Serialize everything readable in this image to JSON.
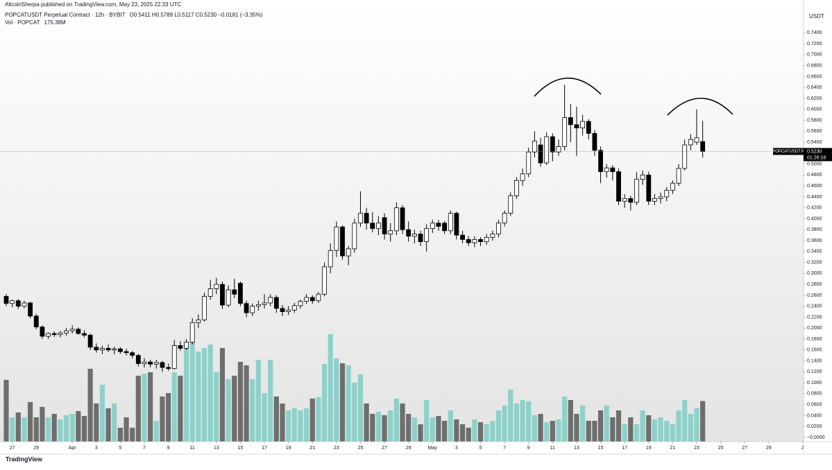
{
  "header": {
    "published": "AltcoinSherpa published on TradingView.com, May 23, 2025 22:33 UTC",
    "footer": "TradingView"
  },
  "chart_data": {
    "type": "candlestick",
    "title": "POPCATUSDT Perpetual Contract · 12h · BYBIT",
    "ohlc_text": "O0.5411 H0.5789 L0.5117 C0.5230 −0.0181 (−3.35%)",
    "volume_title": "Vol · POPCAT",
    "volume_text": "175.38M",
    "currency": "USDT",
    "symbol_tag": "POPCATUSDT.P",
    "countdown": "01:26:16",
    "last_price": {
      "value": 0.523,
      "label": "0.5230"
    },
    "up_color": "#ffffff",
    "down_color": "#000000",
    "volume_up_color": "#8fd0c9",
    "volume_down_color": "#6e6e6e",
    "ylim": [
      -0.0076,
      0.8
    ],
    "xlim": [
      -1.04,
      132.8
    ],
    "yticks": [
      {
        "value": 0,
        "label": "−0.0000"
      },
      {
        "value": 0.02,
        "label": "0.0200"
      },
      {
        "value": 0.04,
        "label": "0.0400"
      },
      {
        "value": 0.06,
        "label": "0.0600"
      },
      {
        "value": 0.08,
        "label": "0.0800"
      },
      {
        "value": 0.1,
        "label": "0.1000"
      },
      {
        "value": 0.12,
        "label": "0.1200"
      },
      {
        "value": 0.14,
        "label": "0.1400"
      },
      {
        "value": 0.16,
        "label": "0.1600"
      },
      {
        "value": 0.18,
        "label": "0.1800"
      },
      {
        "value": 0.2,
        "label": "0.2000"
      },
      {
        "value": 0.22,
        "label": "0.2200"
      },
      {
        "value": 0.24,
        "label": "0.2400"
      },
      {
        "value": 0.26,
        "label": "0.2600"
      },
      {
        "value": 0.28,
        "label": "0.2800"
      },
      {
        "value": 0.3,
        "label": "0.3000"
      },
      {
        "value": 0.32,
        "label": "0.3200"
      },
      {
        "value": 0.34,
        "label": "0.3400"
      },
      {
        "value": 0.36,
        "label": "0.3600"
      },
      {
        "value": 0.38,
        "label": "0.3800"
      },
      {
        "value": 0.4,
        "label": "0.4000"
      },
      {
        "value": 0.42,
        "label": "0.4200"
      },
      {
        "value": 0.44,
        "label": "0.4400"
      },
      {
        "value": 0.46,
        "label": "0.4600"
      },
      {
        "value": 0.48,
        "label": "0.4800"
      },
      {
        "value": 0.5,
        "label": "0.5000"
      },
      {
        "value": 0.52,
        "label": "0.5200"
      },
      {
        "value": 0.54,
        "label": "0.5400"
      },
      {
        "value": 0.56,
        "label": "0.5600"
      },
      {
        "value": 0.58,
        "label": "0.5800"
      },
      {
        "value": 0.6,
        "label": "0.6000"
      },
      {
        "value": 0.62,
        "label": "0.6200"
      },
      {
        "value": 0.64,
        "label": "0.6400"
      },
      {
        "value": 0.66,
        "label": "0.6600"
      },
      {
        "value": 0.68,
        "label": "0.6800"
      },
      {
        "value": 0.7,
        "label": "0.7000"
      },
      {
        "value": 0.72,
        "label": "0.7200"
      },
      {
        "value": 0.74,
        "label": "0.7400"
      }
    ],
    "xticks": [
      {
        "value": 1,
        "label": "27"
      },
      {
        "value": 5,
        "label": "29"
      },
      {
        "value": 11,
        "label": "Apr"
      },
      {
        "value": 15,
        "label": "3"
      },
      {
        "value": 19,
        "label": "5"
      },
      {
        "value": 23,
        "label": "7"
      },
      {
        "value": 27,
        "label": "9"
      },
      {
        "value": 31,
        "label": "11"
      },
      {
        "value": 35,
        "label": "13"
      },
      {
        "value": 39,
        "label": "15"
      },
      {
        "value": 43,
        "label": "17"
      },
      {
        "value": 47,
        "label": "19"
      },
      {
        "value": 51,
        "label": "21"
      },
      {
        "value": 55,
        "label": "23"
      },
      {
        "value": 59,
        "label": "25"
      },
      {
        "value": 63,
        "label": "27"
      },
      {
        "value": 67,
        "label": "29"
      },
      {
        "value": 71,
        "label": "May"
      },
      {
        "value": 75,
        "label": "3"
      },
      {
        "value": 79,
        "label": "5"
      },
      {
        "value": 83,
        "label": "7"
      },
      {
        "value": 87,
        "label": "9"
      },
      {
        "value": 91,
        "label": "11"
      },
      {
        "value": 95,
        "label": "13"
      },
      {
        "value": 99,
        "label": "15"
      },
      {
        "value": 103,
        "label": "17"
      },
      {
        "value": 107,
        "label": "19"
      },
      {
        "value": 111,
        "label": "21"
      },
      {
        "value": 115,
        "label": "23"
      },
      {
        "value": 119,
        "label": "25"
      },
      {
        "value": 123,
        "label": "27"
      },
      {
        "value": 127,
        "label": "29"
      },
      {
        "value": 132.6,
        "label": "J"
      }
    ],
    "ohlc": [
      [
        0.258,
        0.262,
        0.24,
        0.245
      ],
      [
        0.245,
        0.252,
        0.238,
        0.25
      ],
      [
        0.25,
        0.253,
        0.235,
        0.24
      ],
      [
        0.24,
        0.25,
        0.236,
        0.246
      ],
      [
        0.246,
        0.248,
        0.218,
        0.222
      ],
      [
        0.222,
        0.226,
        0.198,
        0.202
      ],
      [
        0.202,
        0.205,
        0.18,
        0.185
      ],
      [
        0.185,
        0.192,
        0.18,
        0.19
      ],
      [
        0.19,
        0.194,
        0.184,
        0.188
      ],
      [
        0.188,
        0.195,
        0.183,
        0.191
      ],
      [
        0.191,
        0.2,
        0.186,
        0.195
      ],
      [
        0.195,
        0.205,
        0.19,
        0.198
      ],
      [
        0.198,
        0.201,
        0.188,
        0.19
      ],
      [
        0.19,
        0.196,
        0.183,
        0.187
      ],
      [
        0.187,
        0.19,
        0.16,
        0.165
      ],
      [
        0.165,
        0.172,
        0.155,
        0.16
      ],
      [
        0.16,
        0.168,
        0.152,
        0.163
      ],
      [
        0.163,
        0.17,
        0.156,
        0.16
      ],
      [
        0.16,
        0.166,
        0.152,
        0.162
      ],
      [
        0.162,
        0.165,
        0.153,
        0.157
      ],
      [
        0.157,
        0.162,
        0.15,
        0.155
      ],
      [
        0.155,
        0.158,
        0.145,
        0.15
      ],
      [
        0.15,
        0.153,
        0.13,
        0.135
      ],
      [
        0.135,
        0.145,
        0.128,
        0.138
      ],
      [
        0.138,
        0.142,
        0.128,
        0.134
      ],
      [
        0.134,
        0.142,
        0.126,
        0.137
      ],
      [
        0.137,
        0.14,
        0.12,
        0.128
      ],
      [
        0.128,
        0.135,
        0.122,
        0.126
      ],
      [
        0.126,
        0.178,
        0.124,
        0.168
      ],
      [
        0.168,
        0.176,
        0.158,
        0.163
      ],
      [
        0.163,
        0.18,
        0.16,
        0.174
      ],
      [
        0.174,
        0.218,
        0.17,
        0.21
      ],
      [
        0.21,
        0.225,
        0.2,
        0.215
      ],
      [
        0.215,
        0.265,
        0.212,
        0.258
      ],
      [
        0.258,
        0.288,
        0.252,
        0.272
      ],
      [
        0.272,
        0.292,
        0.262,
        0.28
      ],
      [
        0.28,
        0.285,
        0.235,
        0.242
      ],
      [
        0.242,
        0.278,
        0.238,
        0.27
      ],
      [
        0.27,
        0.29,
        0.255,
        0.262
      ],
      [
        0.282,
        0.285,
        0.24,
        0.245
      ],
      [
        0.245,
        0.25,
        0.22,
        0.228
      ],
      [
        0.228,
        0.245,
        0.222,
        0.24
      ],
      [
        0.24,
        0.25,
        0.232,
        0.243
      ],
      [
        0.243,
        0.262,
        0.236,
        0.246
      ],
      [
        0.246,
        0.262,
        0.24,
        0.256
      ],
      [
        0.256,
        0.26,
        0.228,
        0.236
      ],
      [
        0.236,
        0.242,
        0.222,
        0.23
      ],
      [
        0.23,
        0.24,
        0.224,
        0.233
      ],
      [
        0.233,
        0.246,
        0.228,
        0.241
      ],
      [
        0.241,
        0.252,
        0.236,
        0.249
      ],
      [
        0.249,
        0.262,
        0.244,
        0.256
      ],
      [
        0.256,
        0.26,
        0.244,
        0.25
      ],
      [
        0.25,
        0.266,
        0.246,
        0.262
      ],
      [
        0.262,
        0.32,
        0.258,
        0.312
      ],
      [
        0.312,
        0.355,
        0.3,
        0.342
      ],
      [
        0.342,
        0.395,
        0.33,
        0.385
      ],
      [
        0.385,
        0.388,
        0.325,
        0.332
      ],
      [
        0.332,
        0.35,
        0.315,
        0.345
      ],
      [
        0.345,
        0.4,
        0.338,
        0.392
      ],
      [
        0.392,
        0.45,
        0.385,
        0.41
      ],
      [
        0.41,
        0.42,
        0.38,
        0.392
      ],
      [
        0.392,
        0.412,
        0.375,
        0.382
      ],
      [
        0.382,
        0.405,
        0.37,
        0.392
      ],
      [
        0.402,
        0.41,
        0.362,
        0.372
      ],
      [
        0.372,
        0.392,
        0.358,
        0.378
      ],
      [
        0.378,
        0.43,
        0.37,
        0.42
      ],
      [
        0.42,
        0.425,
        0.372,
        0.38
      ],
      [
        0.38,
        0.395,
        0.358,
        0.368
      ],
      [
        0.368,
        0.38,
        0.355,
        0.372
      ],
      [
        0.372,
        0.378,
        0.35,
        0.358
      ],
      [
        0.358,
        0.39,
        0.34,
        0.382
      ],
      [
        0.382,
        0.398,
        0.374,
        0.392
      ],
      [
        0.392,
        0.398,
        0.378,
        0.386
      ],
      [
        0.392,
        0.396,
        0.372,
        0.378
      ],
      [
        0.378,
        0.415,
        0.372,
        0.41
      ],
      [
        0.41,
        0.413,
        0.362,
        0.37
      ],
      [
        0.37,
        0.378,
        0.355,
        0.362
      ],
      [
        0.362,
        0.368,
        0.35,
        0.356
      ],
      [
        0.356,
        0.368,
        0.348,
        0.362
      ],
      [
        0.362,
        0.366,
        0.35,
        0.358
      ],
      [
        0.358,
        0.372,
        0.352,
        0.366
      ],
      [
        0.366,
        0.378,
        0.36,
        0.372
      ],
      [
        0.372,
        0.398,
        0.366,
        0.392
      ],
      [
        0.392,
        0.415,
        0.386,
        0.41
      ],
      [
        0.41,
        0.448,
        0.405,
        0.442
      ],
      [
        0.442,
        0.476,
        0.436,
        0.47
      ],
      [
        0.47,
        0.492,
        0.46,
        0.482
      ],
      [
        0.482,
        0.53,
        0.476,
        0.522
      ],
      [
        0.522,
        0.56,
        0.512,
        0.542
      ],
      [
        0.535,
        0.548,
        0.495,
        0.502
      ],
      [
        0.502,
        0.558,
        0.498,
        0.55
      ],
      [
        0.55,
        0.556,
        0.505,
        0.522
      ],
      [
        0.522,
        0.545,
        0.515,
        0.532
      ],
      [
        0.532,
        0.645,
        0.525,
        0.585
      ],
      [
        0.585,
        0.61,
        0.54,
        0.572
      ],
      [
        0.572,
        0.605,
        0.515,
        0.566
      ],
      [
        0.566,
        0.59,
        0.552,
        0.578
      ],
      [
        0.578,
        0.582,
        0.545,
        0.556
      ],
      [
        0.556,
        0.562,
        0.515,
        0.525
      ],
      [
        0.525,
        0.532,
        0.465,
        0.486
      ],
      [
        0.486,
        0.5,
        0.475,
        0.493
      ],
      [
        0.493,
        0.498,
        0.47,
        0.486
      ],
      [
        0.486,
        0.492,
        0.425,
        0.432
      ],
      [
        0.432,
        0.445,
        0.42,
        0.437
      ],
      [
        0.437,
        0.442,
        0.415,
        0.43
      ],
      [
        0.43,
        0.485,
        0.425,
        0.472
      ],
      [
        0.472,
        0.488,
        0.462,
        0.48
      ],
      [
        0.48,
        0.486,
        0.425,
        0.432
      ],
      [
        0.432,
        0.445,
        0.425,
        0.437
      ],
      [
        0.437,
        0.448,
        0.428,
        0.44
      ],
      [
        0.44,
        0.458,
        0.432,
        0.452
      ],
      [
        0.452,
        0.47,
        0.445,
        0.465
      ],
      [
        0.465,
        0.5,
        0.46,
        0.492
      ],
      [
        0.492,
        0.545,
        0.488,
        0.535
      ],
      [
        0.535,
        0.555,
        0.525,
        0.545
      ],
      [
        0.54,
        0.6,
        0.535,
        0.548
      ],
      [
        0.5411,
        0.5789,
        0.5117,
        0.523
      ]
    ],
    "volume": [
      267,
      105,
      126,
      105,
      171,
      105,
      150,
      105,
      120,
      96,
      114,
      120,
      132,
      111,
      315,
      165,
      246,
      144,
      165,
      60,
      105,
      60,
      285,
      294,
      300,
      90,
      195,
      210,
      300,
      285,
      420,
      435,
      390,
      405,
      420,
      300,
      405,
      270,
      285,
      345,
      330,
      270,
      354,
      210,
      354,
      195,
      165,
      135,
      144,
      135,
      144,
      186,
      192,
      336,
      465,
      360,
      339,
      330,
      255,
      291,
      165,
      120,
      129,
      114,
      135,
      186,
      165,
      120,
      105,
      75,
      180,
      105,
      111,
      90,
      135,
      96,
      75,
      60,
      96,
      84,
      75,
      90,
      135,
      156,
      225,
      165,
      180,
      174,
      114,
      120,
      84,
      90,
      96,
      195,
      180,
      120,
      156,
      90,
      90,
      135,
      156,
      105,
      135,
      75,
      105,
      75,
      135,
      114,
      96,
      105,
      90,
      75,
      135,
      180,
      120,
      144,
      175.38
    ]
  }
}
